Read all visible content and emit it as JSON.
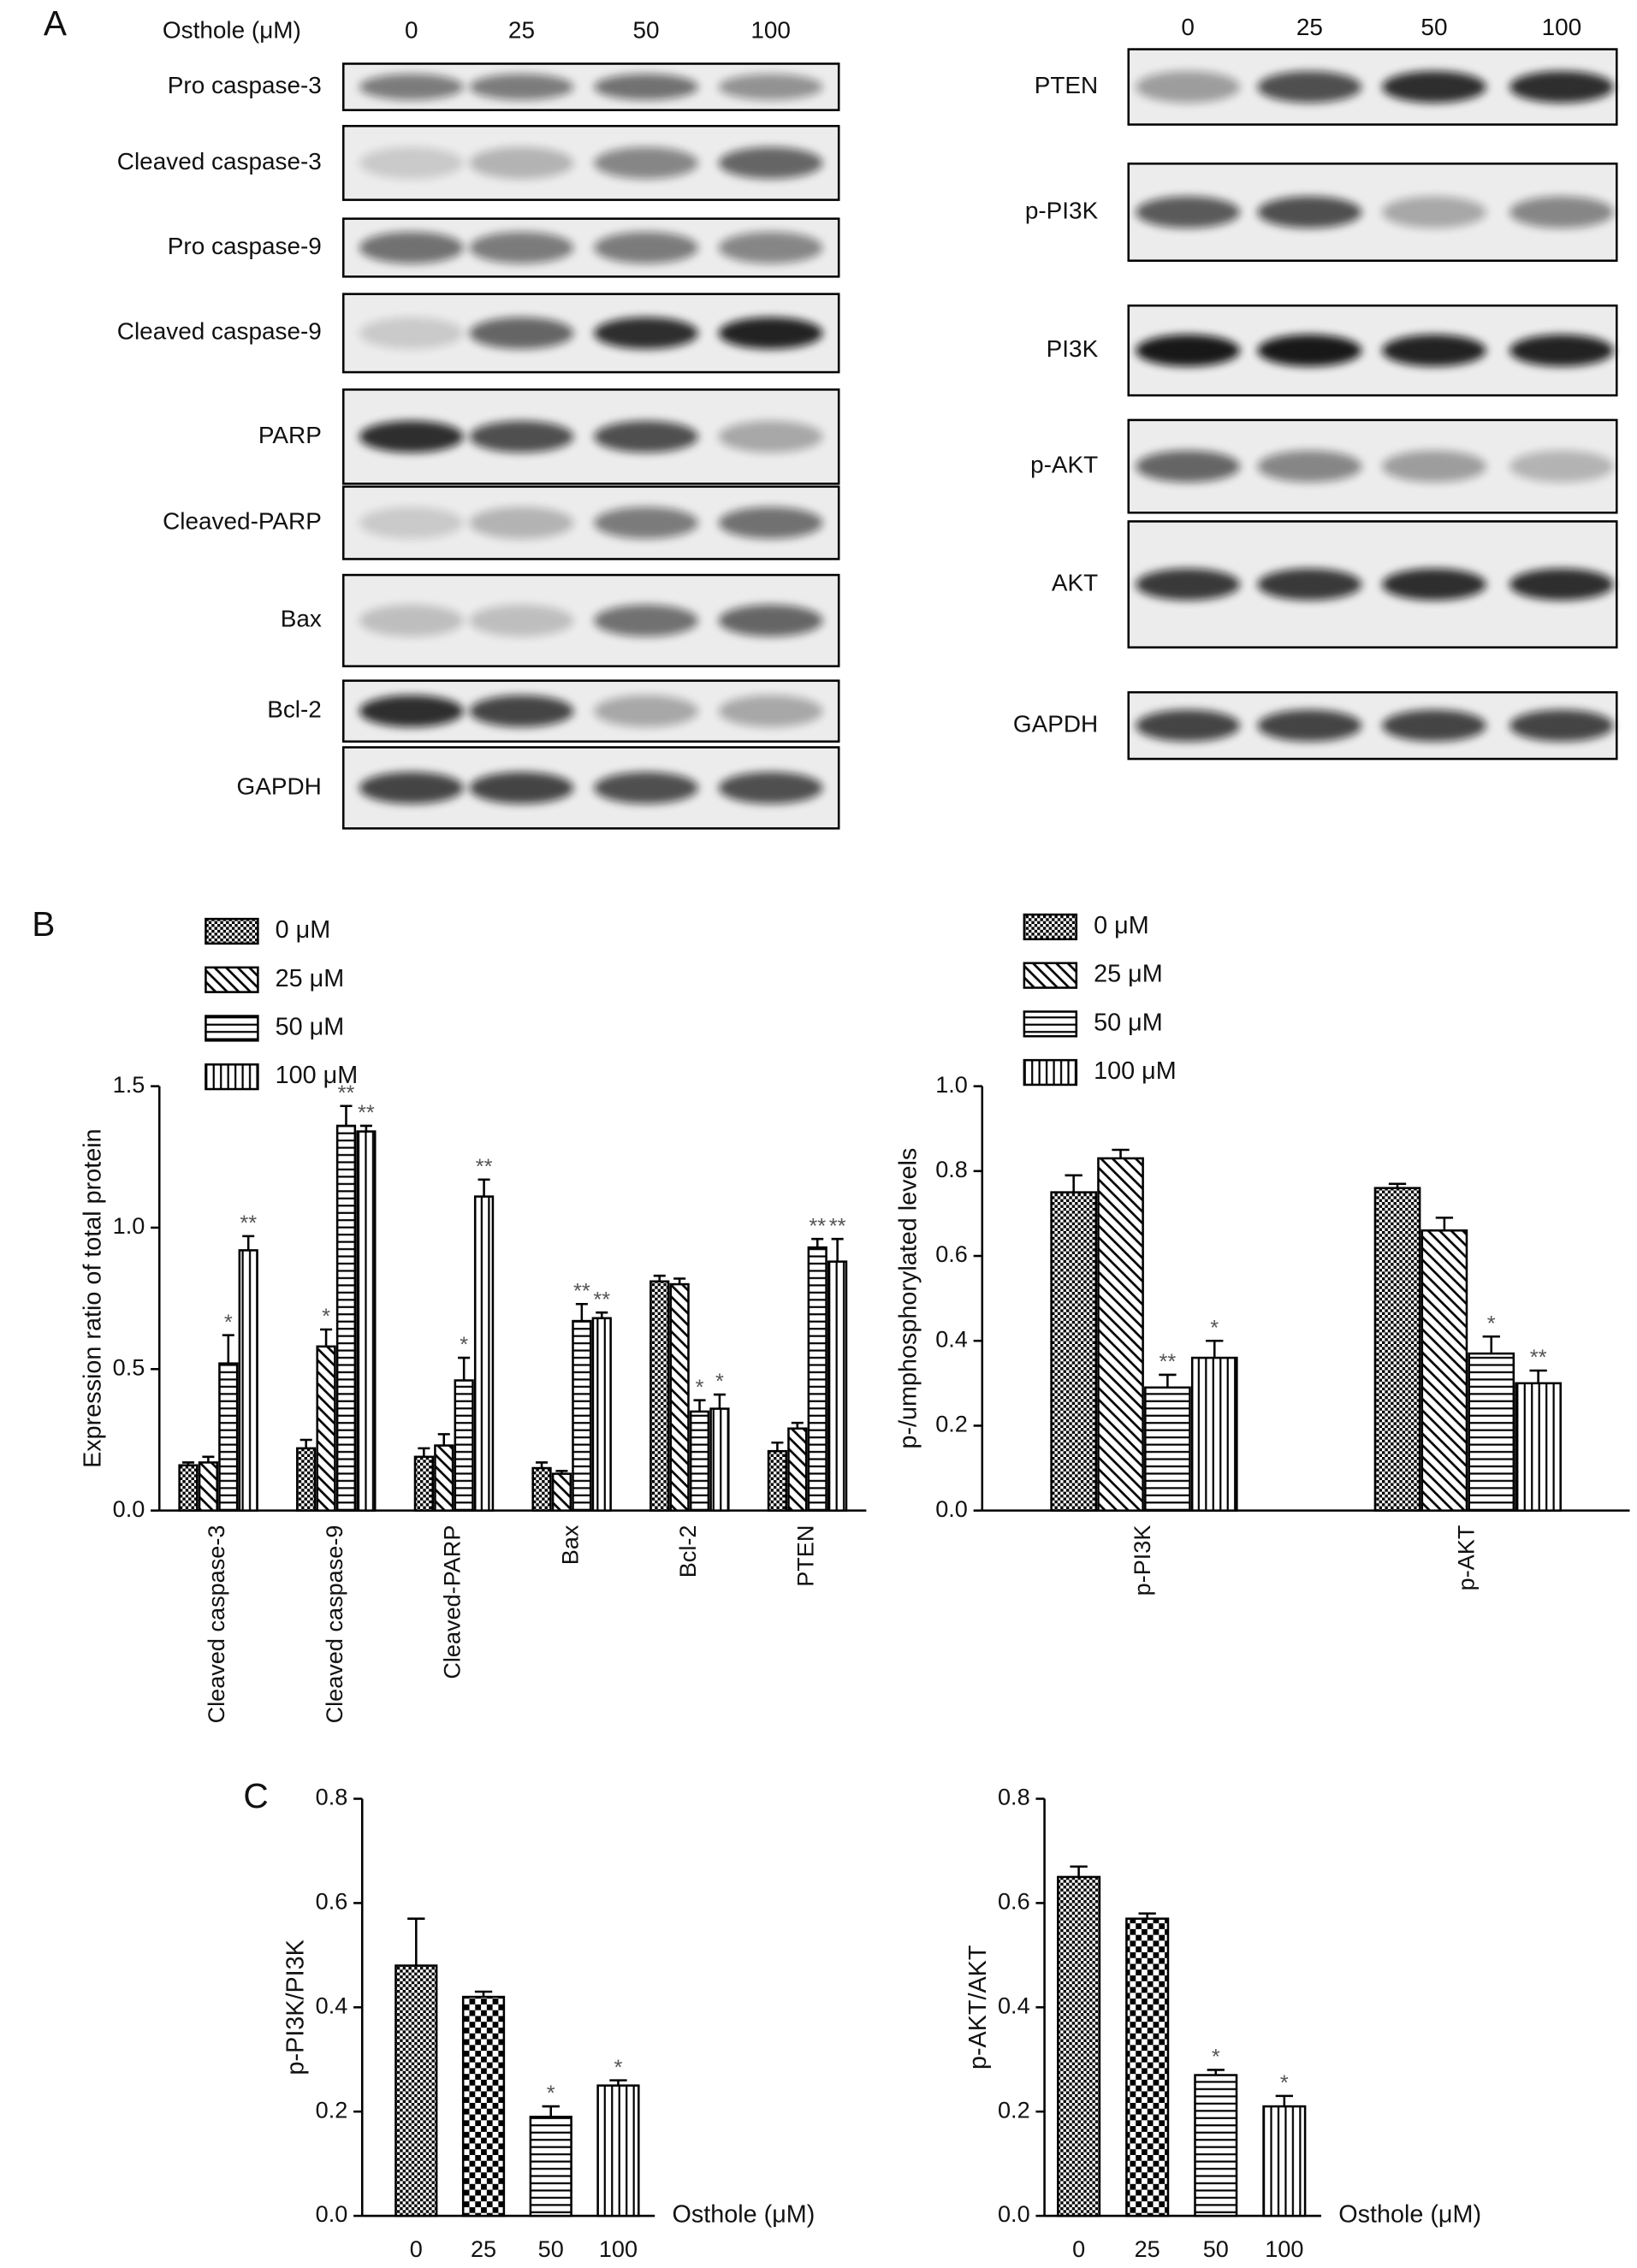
{
  "panel_labels": [
    "A",
    "B",
    "C"
  ],
  "blots": {
    "left": {
      "header": "Osthole (μM)",
      "lanes": [
        "0",
        "25",
        "50",
        "100"
      ],
      "rows": [
        "Pro caspase-3",
        "Cleaved caspase-3",
        "Pro caspase-9",
        "Cleaved caspase-9",
        "PARP",
        "Cleaved-PARP",
        "Bax",
        "Bcl-2",
        "GAPDH"
      ]
    },
    "right": {
      "lanes": [
        "0",
        "25",
        "50",
        "100"
      ],
      "rows": [
        "PTEN",
        "p-PI3K",
        "PI3K",
        "p-AKT",
        "AKT",
        "GAPDH"
      ]
    }
  },
  "chart_data": [
    {
      "type": "bar",
      "ylabel": "Expression ratio of total protein",
      "categories": [
        "Cleaved caspase-3",
        "Cleaved caspase-9",
        "Cleaved-PARP",
        "Bax",
        "Bcl-2",
        "PTEN"
      ],
      "series": [
        {
          "name": "0 μM",
          "color": "#000000",
          "pattern": "crosshatch",
          "values": [
            0.16,
            0.22,
            0.19,
            0.15,
            0.81,
            0.21
          ],
          "errors": [
            0.01,
            0.03,
            0.03,
            0.02,
            0.02,
            0.03
          ],
          "annotations": [
            null,
            null,
            null,
            null,
            null,
            null
          ]
        },
        {
          "name": "25 μM",
          "color": "#000000",
          "pattern": "diagonal",
          "values": [
            0.17,
            0.58,
            0.23,
            0.13,
            0.8,
            0.29
          ],
          "errors": [
            0.02,
            0.06,
            0.04,
            0.01,
            0.02,
            0.02
          ],
          "annotations": [
            null,
            "*",
            null,
            null,
            null,
            null
          ]
        },
        {
          "name": "50 μM",
          "color": "#000000",
          "pattern": "horizontal",
          "values": [
            0.52,
            1.36,
            0.46,
            0.67,
            0.35,
            0.93
          ],
          "errors": [
            0.1,
            0.07,
            0.08,
            0.06,
            0.04,
            0.03
          ],
          "annotations": [
            "*",
            "**",
            "*",
            "**",
            "*",
            "**"
          ]
        },
        {
          "name": "100 μM",
          "color": "#000000",
          "pattern": "vertical",
          "values": [
            0.92,
            1.34,
            1.11,
            0.68,
            0.36,
            0.88
          ],
          "errors": [
            0.05,
            0.02,
            0.06,
            0.02,
            0.05,
            0.08
          ],
          "annotations": [
            "**",
            "**",
            "**",
            "**",
            "*",
            "**"
          ]
        }
      ],
      "ylim": [
        0,
        1.5
      ],
      "yticks": [
        {
          "value": 0,
          "label": "0.0"
        },
        {
          "value": 0.5,
          "label": "0.5"
        },
        {
          "value": 1,
          "label": "1.0"
        },
        {
          "value": 1.5,
          "label": "1.5"
        }
      ],
      "legend": "top-left"
    },
    {
      "type": "bar",
      "ylabel": "p-/umphosphorylated levels",
      "categories": [
        "p-PI3K",
        "p-AKT"
      ],
      "series": [
        {
          "name": "0 μM",
          "color": "#000000",
          "pattern": "crosshatch",
          "values": [
            0.75,
            0.76
          ],
          "errors": [
            0.04,
            0.01
          ],
          "annotations": [
            null,
            null
          ]
        },
        {
          "name": "25 μM",
          "color": "#000000",
          "pattern": "diagonal",
          "values": [
            0.83,
            0.66
          ],
          "errors": [
            0.02,
            0.03
          ],
          "annotations": [
            null,
            null
          ]
        },
        {
          "name": "50 μM",
          "color": "#000000",
          "pattern": "horizontal",
          "values": [
            0.29,
            0.37
          ],
          "errors": [
            0.03,
            0.04
          ],
          "annotations": [
            "**",
            "*"
          ]
        },
        {
          "name": "100 μM",
          "color": "#000000",
          "pattern": "vertical",
          "values": [
            0.36,
            0.3
          ],
          "errors": [
            0.04,
            0.03
          ],
          "annotations": [
            "*",
            "**"
          ]
        }
      ],
      "ylim": [
        0,
        1
      ],
      "yticks": [
        {
          "value": 0,
          "label": "0.0"
        },
        {
          "value": 0.2,
          "label": "0.2"
        },
        {
          "value": 0.4,
          "label": "0.4"
        },
        {
          "value": 0.6,
          "label": "0.6"
        },
        {
          "value": 0.8,
          "label": "0.8"
        },
        {
          "value": 1,
          "label": "1.0"
        }
      ],
      "legend": "top-left"
    },
    {
      "type": "bar",
      "ylabel": "p-PI3K/PI3K",
      "xlabel": "Osthole (μM)",
      "categories": [
        "0",
        "25",
        "50",
        "100"
      ],
      "values": [
        0.48,
        0.42,
        0.19,
        0.25
      ],
      "errors": [
        0.09,
        0.01,
        0.02,
        0.01
      ],
      "annotations": [
        null,
        null,
        "*",
        "*"
      ],
      "patterns": [
        "crosshatch",
        "checker",
        "horizontal",
        "vertical"
      ],
      "color": "#000000",
      "ylim": [
        0,
        0.8
      ],
      "yticks": [
        {
          "value": 0,
          "label": "0.0"
        },
        {
          "value": 0.2,
          "label": "0.2"
        },
        {
          "value": 0.4,
          "label": "0.4"
        },
        {
          "value": 0.6,
          "label": "0.6"
        },
        {
          "value": 0.8,
          "label": "0.8"
        }
      ]
    },
    {
      "type": "bar",
      "ylabel": "p-AKT/AKT",
      "xlabel": "Osthole (μM)",
      "categories": [
        "0",
        "25",
        "50",
        "100"
      ],
      "values": [
        0.65,
        0.57,
        0.27,
        0.21
      ],
      "errors": [
        0.02,
        0.01,
        0.01,
        0.02
      ],
      "annotations": [
        null,
        null,
        "*",
        "*"
      ],
      "patterns": [
        "crosshatch",
        "checker",
        "horizontal",
        "vertical"
      ],
      "color": "#000000",
      "ylim": [
        0,
        0.8
      ],
      "yticks": [
        {
          "value": 0,
          "label": "0.0"
        },
        {
          "value": 0.2,
          "label": "0.2"
        },
        {
          "value": 0.4,
          "label": "0.4"
        },
        {
          "value": 0.6,
          "label": "0.6"
        },
        {
          "value": 0.8,
          "label": "0.8"
        }
      ]
    }
  ]
}
